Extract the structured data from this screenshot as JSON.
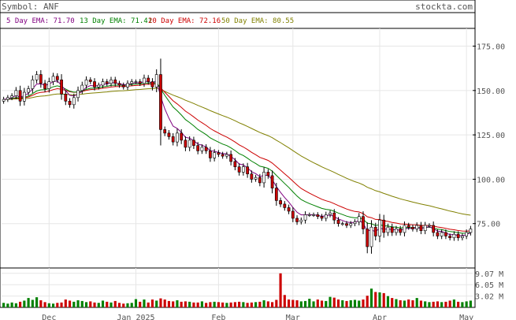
{
  "header": {
    "symbol_label": "Symbol: ANF",
    "site": "stockta.com"
  },
  "legend": [
    {
      "label": "5 Day EMA: 71.70",
      "color": "#800080"
    },
    {
      "label": "13 Day EMA: 71.41",
      "color": "#008000"
    },
    {
      "label": "20 Day EMA: 72.16",
      "color": "#cc0000"
    },
    {
      "label": "50 Day EMA: 80.55",
      "color": "#808000"
    }
  ],
  "colors": {
    "up": "#008000",
    "down": "#cc0000",
    "grid": "#e6e6e6",
    "axis": "#000000",
    "text": "#555555"
  },
  "chart_data": {
    "type": "candlestick",
    "symbol": "ANF",
    "price_axis": {
      "ylim": [
        50,
        185
      ],
      "ticks": [
        {
          "value": 75,
          "label": "75.00"
        },
        {
          "value": 100,
          "label": "100.00"
        },
        {
          "value": 125,
          "label": "125.00"
        },
        {
          "value": 150,
          "label": "150.00"
        },
        {
          "value": 175,
          "label": "175.00"
        }
      ]
    },
    "volume_axis": {
      "unit": "M",
      "ylim": [
        0,
        10.5
      ],
      "ticks": [
        {
          "value": 3.02,
          "label": "3.02 M"
        },
        {
          "value": 6.05,
          "label": "6.05 M"
        },
        {
          "value": 9.07,
          "label": "9.07 M"
        }
      ]
    },
    "x_labels": [
      {
        "index": 11,
        "label": "Dec"
      },
      {
        "index": 32,
        "label": "Jan 2025"
      },
      {
        "index": 52,
        "label": "Feb"
      },
      {
        "index": 70,
        "label": "Mar"
      },
      {
        "index": 91,
        "label": "Apr"
      },
      {
        "index": 112,
        "label": "May"
      }
    ],
    "closes": [
      145,
      146,
      147,
      150,
      144,
      149,
      151,
      156,
      159,
      154,
      151,
      155,
      158,
      156,
      148,
      144,
      142,
      146,
      150,
      153,
      156,
      155,
      152,
      153,
      155,
      154,
      156,
      154,
      153,
      152,
      154,
      155,
      155,
      154,
      157,
      155,
      152,
      159,
      128,
      126,
      124,
      121,
      126,
      122,
      118,
      122,
      119,
      116,
      118,
      116,
      112,
      115,
      114,
      113,
      114,
      110,
      107,
      104,
      107,
      103,
      100,
      101,
      98,
      104,
      102,
      95,
      88,
      86,
      84,
      82,
      78,
      76,
      77,
      80,
      80,
      80,
      79,
      78,
      80,
      81,
      77,
      75,
      75,
      74,
      75,
      76,
      79,
      72,
      62,
      73,
      68,
      77,
      70,
      73,
      70,
      72,
      70,
      74,
      73,
      72,
      74,
      71,
      74,
      74,
      70,
      68,
      70,
      68,
      67,
      69,
      67,
      68,
      70,
      72
    ],
    "volumes": [
      1.2,
      1.0,
      1.3,
      1.1,
      1.5,
      1.8,
      2.5,
      2.0,
      2.7,
      1.9,
      1.4,
      1.1,
      1.0,
      1.2,
      1.3,
      2.1,
      1.8,
      1.5,
      1.9,
      1.7,
      1.4,
      1.6,
      1.3,
      1.2,
      1.8,
      1.5,
      1.3,
      1.7,
      1.2,
      1.0,
      1.1,
      1.2,
      2.2,
      1.5,
      2.1,
      1.3,
      2.1,
      1.8,
      2.4,
      2.1,
      1.7,
      1.6,
      1.9,
      1.5,
      1.6,
      1.5,
      1.3,
      1.3,
      1.6,
      1.2,
      1.4,
      1.5,
      1.4,
      1.3,
      1.2,
      1.3,
      1.4,
      1.5,
      1.4,
      1.2,
      1.3,
      1.4,
      1.5,
      1.9,
      1.6,
      1.4,
      2.0,
      9.07,
      3.3,
      2.1,
      2.0,
      1.9,
      1.6,
      1.7,
      2.3,
      1.6,
      2.1,
      1.8,
      1.7,
      2.8,
      2.6,
      2.1,
      1.9,
      1.7,
      1.9,
      2.0,
      1.8,
      2.1,
      3.1,
      5.0,
      4.1,
      4.0,
      3.8,
      3.0,
      2.5,
      2.2,
      1.9,
      1.8,
      2.1,
      1.9,
      2.5,
      1.8,
      1.6,
      1.4,
      1.5,
      1.6,
      1.4,
      1.5,
      1.8,
      2.1,
      1.5,
      1.4,
      1.6,
      1.8
    ],
    "ema": {
      "5": {
        "color": "#800080",
        "last": 71.7
      },
      "13": {
        "color": "#008000",
        "last": 71.41
      },
      "20": {
        "color": "#cc0000",
        "last": 72.16
      },
      "50": {
        "color": "#808000",
        "last": 80.55
      }
    }
  }
}
